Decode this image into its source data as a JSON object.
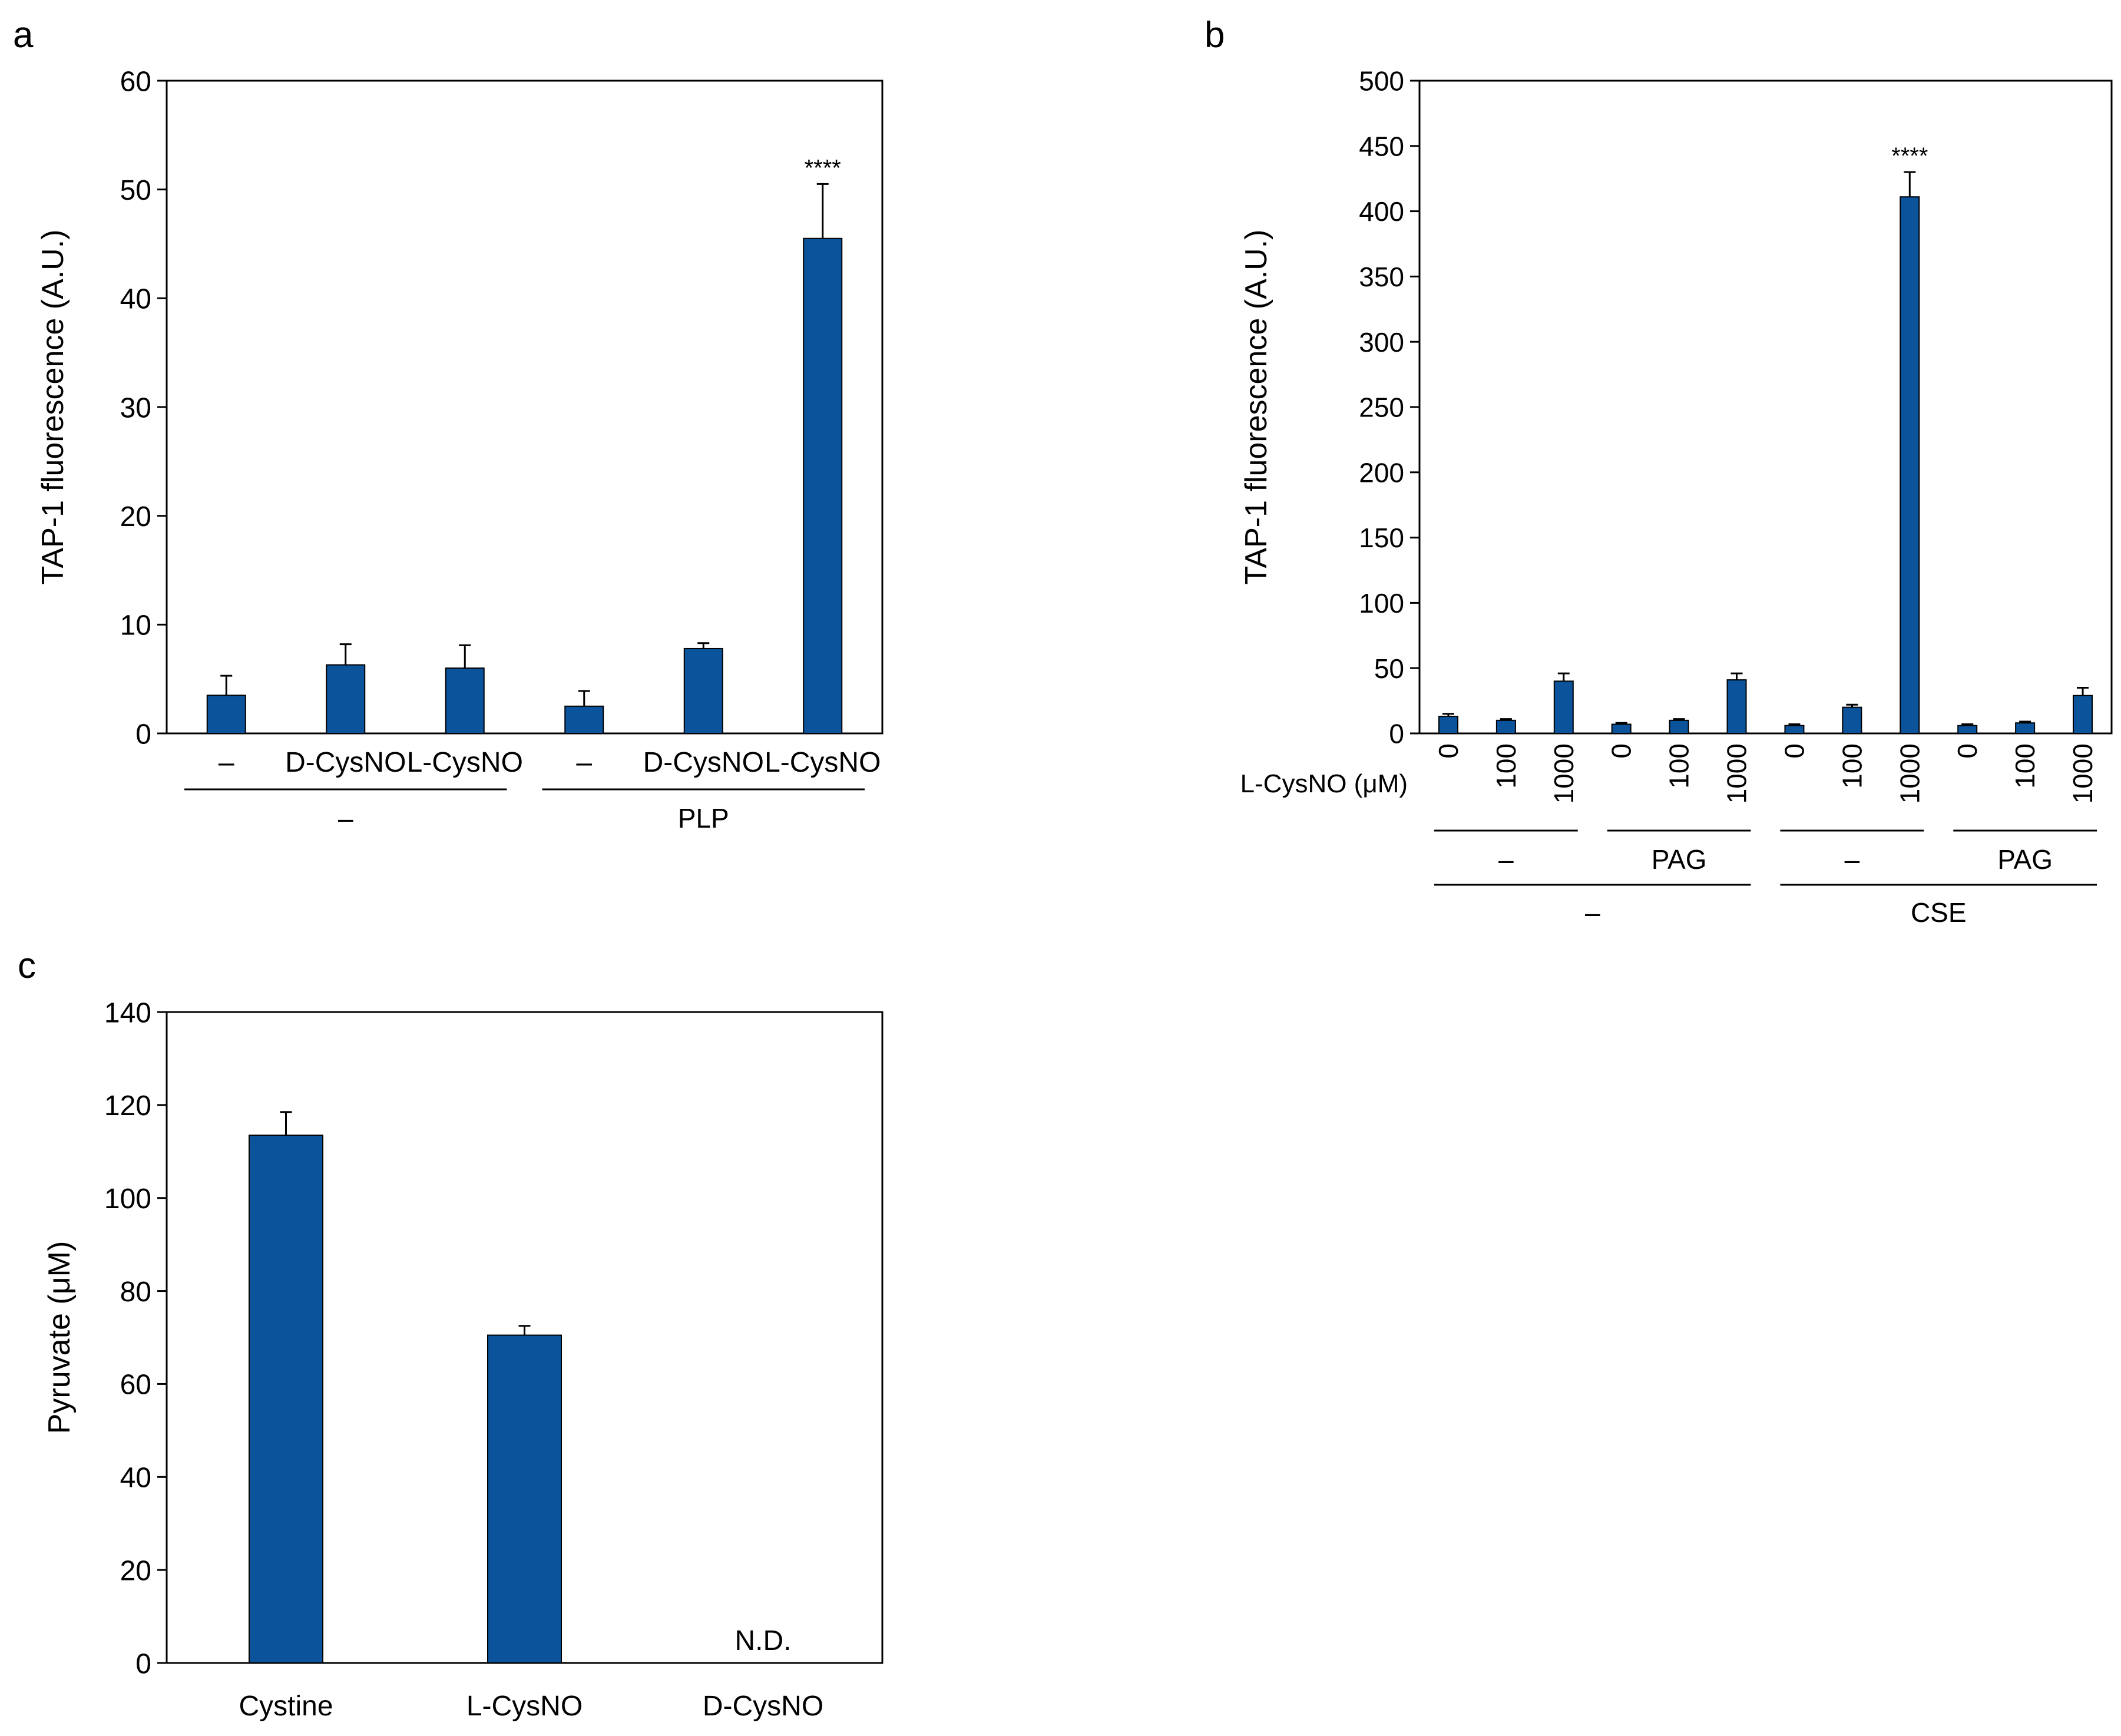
{
  "colors": {
    "bar": "#0b549c",
    "bar_stroke": "#000000",
    "axis": "#000000"
  },
  "chart_data": [
    {
      "panel": "a",
      "type": "bar",
      "ylabel": "TAP-1 fluorescence (A.U.)",
      "ylim": [
        0,
        60
      ],
      "yticks": [
        0,
        10,
        20,
        30,
        40,
        50,
        60
      ],
      "categories": [
        "–",
        "D-CysNO",
        "L-CysNO",
        "–",
        "D-CysNO",
        "L-CysNO"
      ],
      "values": [
        3.5,
        6.3,
        6.0,
        2.5,
        7.8,
        45.5
      ],
      "errors": [
        1.8,
        1.9,
        2.1,
        1.4,
        0.5,
        5.0
      ],
      "annotations": [
        {
          "bar": 5,
          "text": "****"
        }
      ],
      "groups": [
        {
          "label": "–",
          "from": 0,
          "to": 2
        },
        {
          "label": "PLP",
          "from": 3,
          "to": 5
        }
      ]
    },
    {
      "panel": "b",
      "type": "bar",
      "ylabel": "TAP-1 fluorescence (A.U.)",
      "ylim": [
        0,
        500
      ],
      "yticks": [
        0,
        50,
        100,
        150,
        200,
        250,
        300,
        350,
        400,
        450,
        500
      ],
      "row_label": "L-CysNO (μM)",
      "categories": [
        "0",
        "100",
        "1000",
        "0",
        "100",
        "1000",
        "0",
        "100",
        "1000",
        "0",
        "100",
        "1000"
      ],
      "values": [
        13,
        10,
        40,
        7,
        10,
        41,
        6,
        20,
        411,
        6,
        8,
        29
      ],
      "errors": [
        2,
        1,
        6,
        1,
        1,
        5,
        1,
        2,
        19,
        1,
        1,
        6
      ],
      "annotations": [
        {
          "bar": 8,
          "text": "****"
        }
      ],
      "groups": [
        {
          "label": "–",
          "from": 0,
          "to": 2
        },
        {
          "label": "PAG",
          "from": 3,
          "to": 5
        },
        {
          "label": "–",
          "from": 6,
          "to": 8
        },
        {
          "label": "PAG",
          "from": 9,
          "to": 11
        }
      ],
      "supergroups": [
        {
          "label": "–",
          "from": 0,
          "to": 5
        },
        {
          "label": "CSE",
          "from": 6,
          "to": 11
        }
      ]
    },
    {
      "panel": "c",
      "type": "bar",
      "ylabel": "Pyruvate (μM)",
      "ylim": [
        0,
        140
      ],
      "yticks": [
        0,
        20,
        40,
        60,
        80,
        100,
        120,
        140
      ],
      "categories": [
        "Cystine",
        "L-CysNO",
        "D-CysNO"
      ],
      "values": [
        113.5,
        70.5,
        null
      ],
      "errors": [
        5.0,
        2.0,
        null
      ],
      "annotations": [
        {
          "bar": 2,
          "text": "N.D."
        }
      ]
    }
  ]
}
